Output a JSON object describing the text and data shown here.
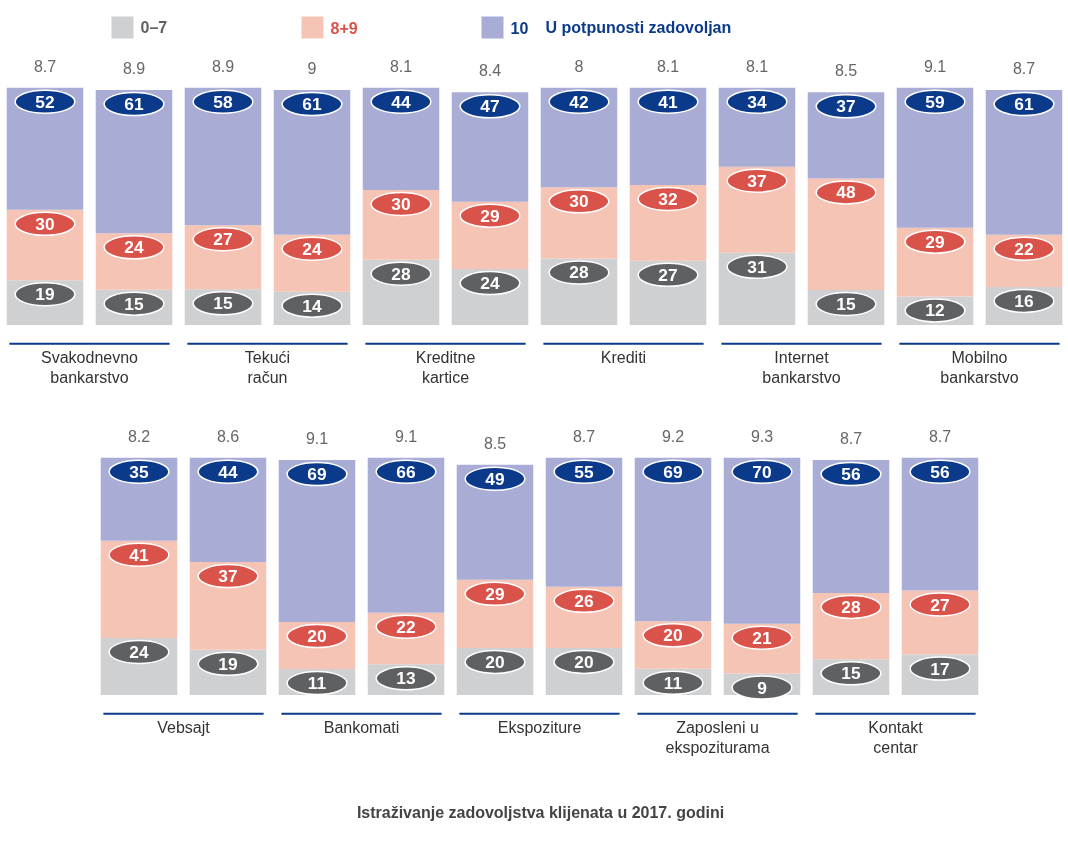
{
  "chart_data": [
    {
      "type": "bar",
      "stacked": true,
      "data_labels": true,
      "legend": "top",
      "title": "Svakodnevno\nbankarstvo",
      "categories": [
        null,
        null
      ],
      "series": [
        {
          "name": "0–7",
          "color": "#cfd0d2",
          "values": [
            19,
            15
          ]
        },
        {
          "name": "8+9",
          "color": "#f6c4b4",
          "values": [
            30,
            24
          ]
        },
        {
          "name": "10",
          "color": "#a9acd5",
          "values": [
            52,
            61
          ]
        }
      ],
      "annotations": [
        "8.7",
        "8.9",
        "U potpunosti zadovoljan",
        "Istraživanje zadovoljstva klijenata u 2017. godini"
      ]
    },
    {
      "type": "bar",
      "stacked": true,
      "data_labels": true,
      "title": "Tekući\nračun",
      "categories": [
        null,
        null
      ],
      "series": [
        {
          "color": "#cfd0d2",
          "values": [
            15,
            14
          ]
        },
        {
          "color": "#f6c4b4",
          "values": [
            27,
            24
          ]
        },
        {
          "color": "#a9acd5",
          "values": [
            58,
            61
          ]
        }
      ],
      "annotations": [
        "8.9",
        "9"
      ]
    },
    {
      "type": "bar",
      "stacked": true,
      "data_labels": true,
      "title": "Kreditne\nkartice",
      "categories": [
        null,
        null
      ],
      "series": [
        {
          "color": "#cfd0d2",
          "values": [
            28,
            24
          ]
        },
        {
          "color": "#f6c4b4",
          "values": [
            30,
            29
          ]
        },
        {
          "color": "#a9acd5",
          "values": [
            44,
            47
          ]
        }
      ],
      "annotations": [
        "8.1",
        "8.4"
      ]
    },
    {
      "type": "bar",
      "stacked": true,
      "data_labels": true,
      "title": "Krediti",
      "categories": [
        null,
        null
      ],
      "series": [
        {
          "color": "#cfd0d2",
          "values": [
            28,
            27
          ]
        },
        {
          "color": "#f6c4b4",
          "values": [
            30,
            32
          ]
        },
        {
          "color": "#a9acd5",
          "values": [
            42,
            41
          ]
        }
      ],
      "annotations": [
        "8",
        "8.1"
      ]
    },
    {
      "type": "bar",
      "stacked": true,
      "data_labels": true,
      "title": "Internet\nbankarstvo",
      "categories": [
        null,
        null
      ],
      "series": [
        {
          "color": "#cfd0d2",
          "values": [
            31,
            15
          ]
        },
        {
          "color": "#f6c4b4",
          "values": [
            37,
            48
          ]
        },
        {
          "color": "#a9acd5",
          "values": [
            34,
            37
          ]
        }
      ],
      "annotations": [
        "8.1",
        "8.5"
      ]
    },
    {
      "type": "bar",
      "stacked": true,
      "data_labels": true,
      "title": "Mobilno\nbankarstvo",
      "categories": [
        null,
        null
      ],
      "series": [
        {
          "color": "#cfd0d2",
          "values": [
            12,
            16
          ]
        },
        {
          "color": "#f6c4b4",
          "values": [
            29,
            22
          ]
        },
        {
          "color": "#a9acd5",
          "values": [
            59,
            61
          ]
        }
      ],
      "annotations": [
        "9.1",
        "8.7"
      ]
    },
    {
      "type": "bar",
      "stacked": true,
      "data_labels": true,
      "title": "Vebsajt",
      "categories": [
        null,
        null
      ],
      "series": [
        {
          "color": "#cfd0d2",
          "values": [
            24,
            19
          ]
        },
        {
          "color": "#f6c4b4",
          "values": [
            41,
            37
          ]
        },
        {
          "color": "#a9acd5",
          "values": [
            35,
            44
          ]
        }
      ],
      "annotations": [
        "8.2",
        "8.6"
      ]
    },
    {
      "type": "bar",
      "stacked": true,
      "data_labels": true,
      "title": "Bankomati",
      "categories": [
        null,
        null
      ],
      "series": [
        {
          "color": "#cfd0d2",
          "values": [
            11,
            13
          ]
        },
        {
          "color": "#f6c4b4",
          "values": [
            20,
            22
          ]
        },
        {
          "color": "#a9acd5",
          "values": [
            69,
            66
          ]
        }
      ],
      "annotations": [
        "9.1",
        "9.1"
      ]
    },
    {
      "type": "bar",
      "stacked": true,
      "data_labels": true,
      "title": "Ekspoziture",
      "categories": [
        null,
        null
      ],
      "series": [
        {
          "color": "#cfd0d2",
          "values": [
            20,
            20
          ]
        },
        {
          "color": "#f6c4b4",
          "values": [
            29,
            26
          ]
        },
        {
          "color": "#a9acd5",
          "values": [
            49,
            55
          ]
        }
      ],
      "annotations": [
        "8.5",
        "8.7"
      ]
    },
    {
      "type": "bar",
      "stacked": true,
      "data_labels": true,
      "title": "Zaposleni u\nekspoziturama",
      "categories": [
        null,
        null
      ],
      "series": [
        {
          "color": "#cfd0d2",
          "values": [
            11,
            9
          ]
        },
        {
          "color": "#f6c4b4",
          "values": [
            20,
            21
          ]
        },
        {
          "color": "#a9acd5",
          "values": [
            69,
            70
          ]
        }
      ],
      "annotations": [
        "9.2",
        "9.3"
      ]
    },
    {
      "type": "bar",
      "stacked": true,
      "data_labels": true,
      "title": "Kontakt\ncentar",
      "categories": [
        null,
        null
      ],
      "series": [
        {
          "color": "#cfd0d2",
          "values": [
            15,
            17
          ]
        },
        {
          "color": "#f6c4b4",
          "values": [
            28,
            27
          ]
        },
        {
          "color": "#a9acd5",
          "values": [
            56,
            56
          ]
        }
      ],
      "annotations": [
        "8.7",
        "8.7"
      ]
    }
  ]
}
